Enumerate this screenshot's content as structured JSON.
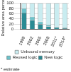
{
  "chart_data": {
    "type": "bar",
    "stacked": true,
    "y_label": "Relative area percent",
    "annotations": [
      "* estimate"
    ],
    "categories": [
      "1999",
      "2002",
      "2005",
      "2008",
      "2011*",
      "2014*"
    ],
    "series": [
      {
        "name": "New logic",
        "color": "#2a8a93",
        "values": [
          64,
          35,
          20,
          11,
          6,
          4
        ]
      },
      {
        "name": "Reused logic",
        "color": "#6cc3cb",
        "values": [
          16,
          13,
          9,
          6,
          4,
          2
        ]
      },
      {
        "name": "Unbound memory",
        "color": "#c9ecf0",
        "values": [
          20,
          52,
          71,
          83,
          90,
          94
        ]
      }
    ],
    "ylim": [
      0,
      100
    ],
    "yticks": [
      0,
      20,
      40,
      60,
      80,
      100
    ],
    "grid": true,
    "legend": "bottom"
  }
}
